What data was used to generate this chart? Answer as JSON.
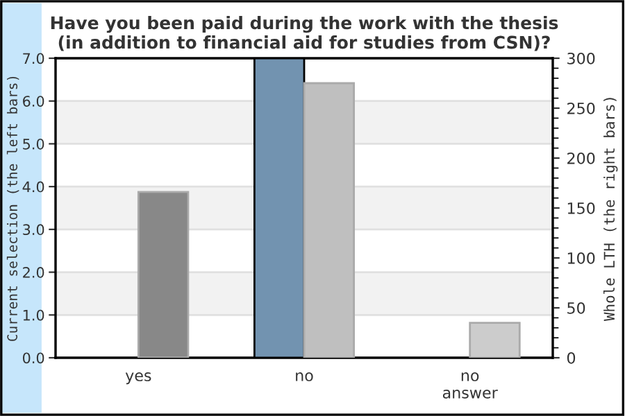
{
  "chart_data": {
    "type": "bar",
    "title": "Have you been paid during the work with the thesis\n(in addition to financial aid for studies from CSN)?",
    "categories": [
      "yes",
      "no",
      "no\nanswer"
    ],
    "ylabel": "Current selection (the left bars)",
    "y2label": "Whole LTH (the right bars)",
    "series": [
      {
        "color": "#7293b0",
        "values": [
          null,
          7,
          null
        ]
      },
      {
        "colors": [
          "#888888",
          "#bfbfbf",
          "#cccccc"
        ],
        "values": [
          166,
          275,
          35
        ],
        "axis": "y2"
      }
    ],
    "ylim": [
      0,
      7
    ],
    "yticks": [
      {
        "value": 0,
        "label": "0.0"
      },
      {
        "value": 1,
        "label": "1.0"
      },
      {
        "value": 2,
        "label": "2.0"
      },
      {
        "value": 3,
        "label": "3.0"
      },
      {
        "value": 4,
        "label": "4.0"
      },
      {
        "value": 5,
        "label": "5.0"
      },
      {
        "value": 6,
        "label": "6.0"
      },
      {
        "value": 7,
        "label": "7.0"
      }
    ],
    "y2lim": [
      0,
      300
    ],
    "y2ticks": [
      0,
      {
        "value": 10,
        "label": null
      },
      {
        "value": 20,
        "label": null
      },
      {
        "value": 30,
        "label": null
      },
      {
        "value": 40,
        "label": null
      },
      50,
      {
        "value": 60,
        "label": null
      },
      {
        "value": 70,
        "label": null
      },
      {
        "value": 80,
        "label": null
      },
      {
        "value": 90,
        "label": null
      },
      100,
      {
        "value": 110,
        "label": null
      },
      {
        "value": 120,
        "label": null
      },
      {
        "value": 130,
        "label": null
      },
      {
        "value": 140,
        "label": null
      },
      150,
      {
        "value": 160,
        "label": null
      },
      {
        "value": 170,
        "label": null
      },
      {
        "value": 180,
        "label": null
      },
      {
        "value": 190,
        "label": null
      },
      200,
      {
        "value": 210,
        "label": null
      },
      {
        "value": 220,
        "label": null
      },
      {
        "value": 230,
        "label": null
      },
      {
        "value": 240,
        "label": null
      },
      250,
      {
        "value": 260,
        "label": null
      },
      {
        "value": 270,
        "label": null
      },
      {
        "value": 280,
        "label": null
      },
      {
        "value": 290,
        "label": null
      },
      300
    ],
    "bands": [
      {
        "axis": "y",
        "from": 1,
        "to": 2,
        "color": "#f2f2f2"
      },
      {
        "axis": "y",
        "from": 3,
        "to": 4,
        "color": "#f2f2f2"
      },
      {
        "axis": "y",
        "from": 5,
        "to": 6,
        "color": "#f2f2f2"
      }
    ],
    "grid": "y",
    "legend": false
  }
}
